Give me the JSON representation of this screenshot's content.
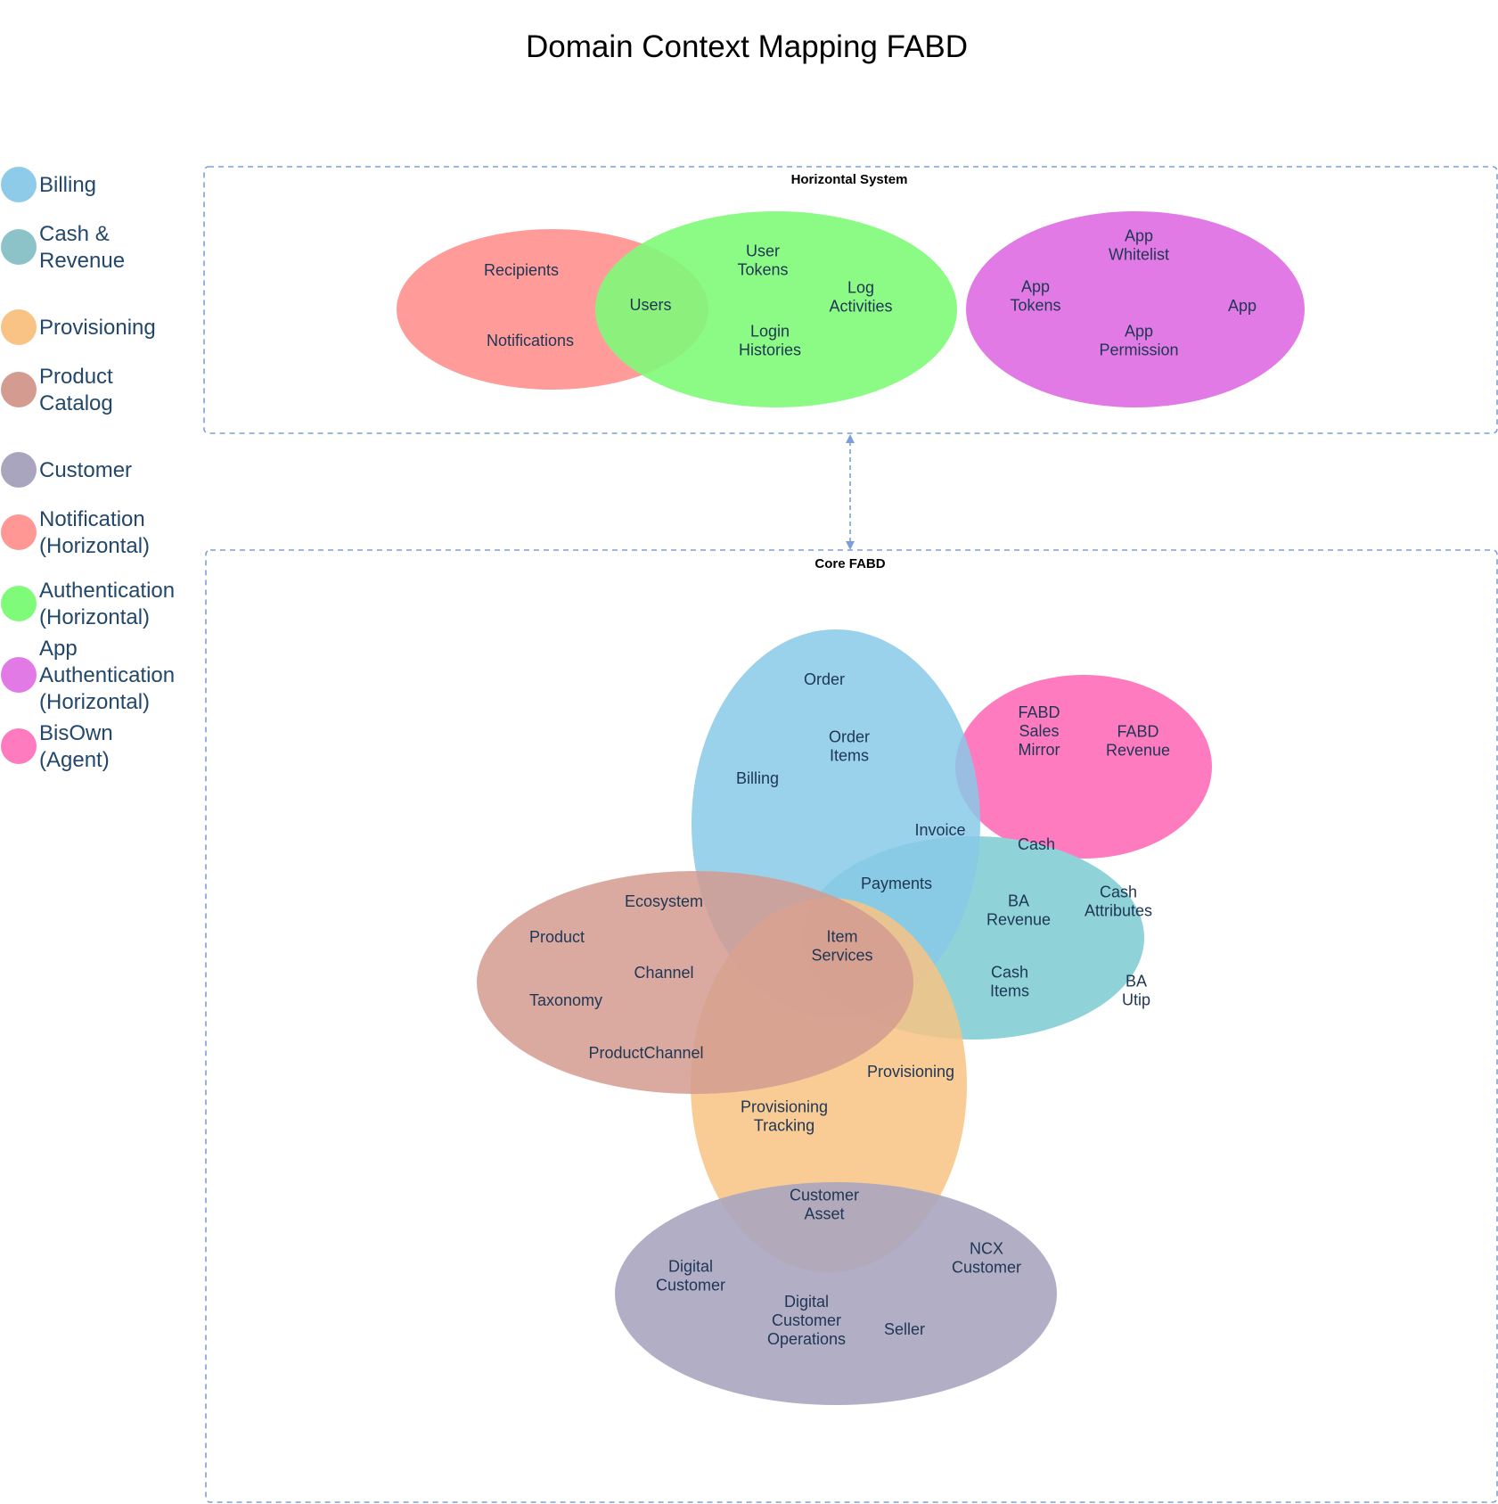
{
  "title": "Domain Context Mapping FABD",
  "colors": {
    "billing": "#88c9e8",
    "cash_revenue": "#8fd3d8",
    "provisioning": "#f8c384",
    "product_catalog": "#d49b91",
    "customer": "#aaa5bf",
    "notification": "#ff9795",
    "authentication": "#80fb79",
    "app_authentication": "#e27ae5",
    "bisown": "#fe7bbf",
    "legend_billing": "#8ecbe8",
    "legend_cash_revenue": "#8cc3c8",
    "legend_provisioning": "#f8c384",
    "legend_product_catalog": "#d49b91",
    "legend_customer": "#aaa5bf",
    "legend_notification": "#ff9795",
    "legend_authentication": "#80fb79",
    "legend_app_authentication": "#e27ae5",
    "legend_bisown": "#fe7bbf",
    "group_border": "#7e9fd6"
  },
  "legend": [
    {
      "key": "billing",
      "lines": [
        "Billing"
      ]
    },
    {
      "key": "cash_revenue",
      "lines": [
        "Cash &",
        "Revenue"
      ]
    },
    {
      "key": "provisioning",
      "lines": [
        "Provisioning"
      ]
    },
    {
      "key": "product_catalog",
      "lines": [
        "Product",
        "Catalog"
      ]
    },
    {
      "key": "customer",
      "lines": [
        "Customer"
      ]
    },
    {
      "key": "notification",
      "lines": [
        "Notification",
        "(Horizontal)"
      ]
    },
    {
      "key": "authentication",
      "lines": [
        "Authentication",
        "(Horizontal)"
      ]
    },
    {
      "key": "app_authentication",
      "lines": [
        "App",
        "Authentication",
        "(Horizontal)"
      ]
    },
    {
      "key": "bisown",
      "lines": [
        "BisOwn",
        "(Agent)"
      ]
    }
  ],
  "groups": {
    "horizontal": {
      "label": "Horizontal System"
    },
    "core": {
      "label": "Core FABD"
    }
  },
  "labels": {
    "recipients": [
      "Recipients"
    ],
    "notifications": [
      "Notifications"
    ],
    "users": [
      "Users"
    ],
    "user_tokens": [
      "User",
      "Tokens"
    ],
    "log_activities": [
      "Log",
      "Activities"
    ],
    "login_histories": [
      "Login",
      "Histories"
    ],
    "app_whitelist": [
      "App",
      "Whitelist"
    ],
    "app_tokens": [
      "App",
      "Tokens"
    ],
    "app": [
      "App"
    ],
    "app_permission": [
      "App",
      "Permission"
    ],
    "order": [
      "Order"
    ],
    "order_items": [
      "Order",
      "Items"
    ],
    "billing": [
      "Billing"
    ],
    "fabd_sales_mirror": [
      "FABD",
      "Sales",
      "Mirror"
    ],
    "fabd_revenue": [
      "FABD",
      "Revenue"
    ],
    "invoice": [
      "Invoice"
    ],
    "cash": [
      "Cash"
    ],
    "payments": [
      "Payments"
    ],
    "ba_revenue": [
      "BA",
      "Revenue"
    ],
    "cash_attributes": [
      "Cash",
      "Attributes"
    ],
    "ecosystem": [
      "Ecosystem"
    ],
    "product": [
      "Product"
    ],
    "channel": [
      "Channel"
    ],
    "taxonomy": [
      "Taxonomy"
    ],
    "item_services": [
      "Item",
      "Services"
    ],
    "cash_items": [
      "Cash",
      "Items"
    ],
    "ba_utip": [
      "BA",
      "Utip"
    ],
    "product_channel": [
      "ProductChannel"
    ],
    "provisioning": [
      "Provisioning"
    ],
    "provisioning_tracking": [
      "Provisioning",
      "Tracking"
    ],
    "customer_asset": [
      "Customer",
      "Asset"
    ],
    "ncx_customer": [
      "NCX",
      "Customer"
    ],
    "digital_customer": [
      "Digital",
      "Customer"
    ],
    "digital_customer_operations": [
      "Digital",
      "Customer",
      "Operations"
    ],
    "seller": [
      "Seller"
    ]
  }
}
